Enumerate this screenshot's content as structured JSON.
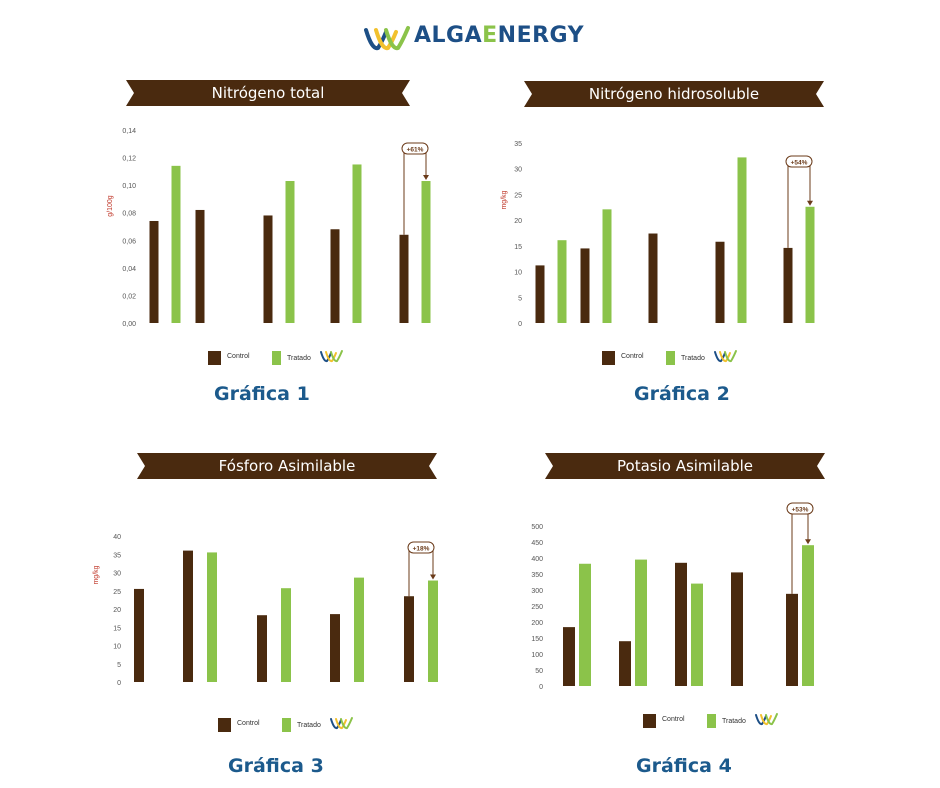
{
  "brand": {
    "name_left": "ALGA",
    "name_mid": "E",
    "name_right": "NERGY",
    "colors": {
      "brown": "#4a2a0f",
      "green": "#8bc34a",
      "blue": "#1c5a8c",
      "red": "#c0392b"
    }
  },
  "legend": {
    "control": "Control",
    "tratado": "Tratado"
  },
  "charts": [
    {
      "banner_title": "Nitrógeno total",
      "caption": "Gráfica 1"
    },
    {
      "banner_title": "Nitrógeno hidrosoluble",
      "caption": "Gráfica 2"
    },
    {
      "banner_title": "Fósforo Asimilable",
      "caption": "Gráfica 3"
    },
    {
      "banner_title": "Potasio Asimilable",
      "caption": "Gráfica 4"
    }
  ],
  "chart_data": [
    {
      "type": "bar",
      "title": "Nitrógeno total",
      "ylabel": "g/100g",
      "ylim": [
        0,
        0.14
      ],
      "yticks": [
        "0,00",
        "0,02",
        "0,04",
        "0,06",
        "0,08",
        "0,10",
        "0,12",
        "0,14"
      ],
      "series": [
        {
          "name": "Control",
          "color": "#4a2a0f",
          "values": [
            0.074,
            0.082,
            0.078,
            0.068,
            0.064
          ]
        },
        {
          "name": "Tratado",
          "color": "#8bc34a",
          "values": [
            0.114,
            null,
            0.103,
            0.115,
            0.103
          ]
        }
      ],
      "annotation": {
        "text": "+61%",
        "group": 4
      }
    },
    {
      "type": "bar",
      "title": "Nitrógeno hidrosoluble",
      "ylabel": "mg/kg",
      "ylim": [
        0,
        35
      ],
      "yticks": [
        "0",
        "5",
        "10",
        "15",
        "20",
        "25",
        "30",
        "35"
      ],
      "series": [
        {
          "name": "Control",
          "color": "#4a2a0f",
          "values": [
            11.2,
            14.5,
            17.4,
            15.8,
            14.6
          ]
        },
        {
          "name": "Tratado",
          "color": "#8bc34a",
          "values": [
            16.1,
            22.1,
            null,
            32.2,
            22.6
          ]
        }
      ],
      "annotation": {
        "text": "+54%",
        "group": 4
      }
    },
    {
      "type": "bar",
      "title": "Fósforo Asimilable",
      "ylabel": "mg/kg",
      "ylim": [
        0,
        40
      ],
      "yticks": [
        "0",
        "5",
        "10",
        "15",
        "20",
        "25",
        "30",
        "35",
        "40"
      ],
      "series": [
        {
          "name": "Control",
          "color": "#4a2a0f",
          "values": [
            25.5,
            36.0,
            18.3,
            18.6,
            23.5
          ]
        },
        {
          "name": "Tratado",
          "color": "#8bc34a",
          "values": [
            null,
            35.5,
            25.7,
            28.6,
            27.8
          ]
        }
      ],
      "annotation": {
        "text": "+18%",
        "group": 4
      }
    },
    {
      "type": "bar",
      "title": "Potasio Asimilable",
      "ylabel": "",
      "ylim": [
        0,
        500
      ],
      "yticks": [
        "0",
        "50",
        "100",
        "150",
        "200",
        "250",
        "300",
        "350",
        "400",
        "450",
        "500"
      ],
      "series": [
        {
          "name": "Control",
          "color": "#4a2a0f",
          "values": [
            184,
            140,
            385,
            355,
            288
          ]
        },
        {
          "name": "Tratado",
          "color": "#8bc34a",
          "values": [
            382,
            395,
            320,
            null,
            440
          ]
        }
      ],
      "annotation": {
        "text": "+53%",
        "group": 4
      }
    }
  ]
}
